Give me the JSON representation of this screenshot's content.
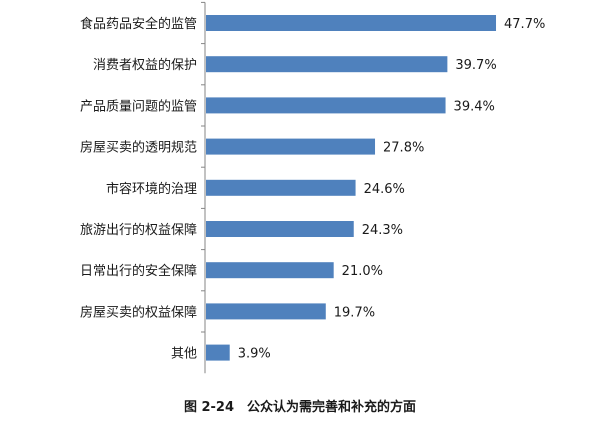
{
  "chart_data": {
    "type": "bar",
    "orientation": "horizontal",
    "categories": [
      "食品药品安全的监管",
      "消费者权益的保护",
      "产品质量问题的监管",
      "房屋买卖的透明规范",
      "市容环境的治理",
      "旅游出行的权益保障",
      "日常出行的安全保障",
      "房屋买卖的权益保障",
      "其他"
    ],
    "values": [
      47.7,
      39.7,
      39.4,
      27.8,
      24.6,
      24.3,
      21.0,
      19.7,
      3.9
    ],
    "value_labels": [
      "47.7%",
      "39.7%",
      "39.4%",
      "27.8%",
      "24.6%",
      "24.3%",
      "21.0%",
      "19.7%",
      "3.9%"
    ],
    "xlim": [
      0,
      50
    ],
    "grid": false,
    "bar_color": "#4f81bd",
    "axis_color": "#868686",
    "caption": "图 2-24　公众认为需完善和补充的方面"
  }
}
